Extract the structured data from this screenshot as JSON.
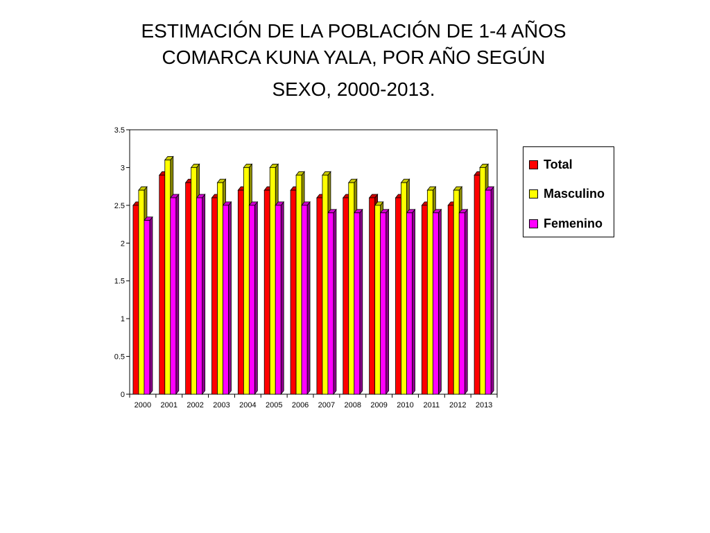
{
  "title": {
    "line1": "ESTIMACIÓN DE LA POBLACIÓN DE 1-4  AÑOS",
    "line2": "COMARCA KUNA YALA, POR AÑO SEGÚN",
    "line3": "SEXO, 2000-2013."
  },
  "chart_data": {
    "type": "bar",
    "title": "",
    "xlabel": "",
    "ylabel": "",
    "ylim": [
      0,
      3.5
    ],
    "yticks": [
      "0",
      "0.5",
      "1",
      "1.5",
      "2",
      "2.5",
      "3",
      "3.5"
    ],
    "categories": [
      "2000",
      "2001",
      "2002",
      "2003",
      "2004",
      "2005",
      "2006",
      "2007",
      "2008",
      "2009",
      "2010",
      "2011",
      "2012",
      "2013"
    ],
    "series": [
      {
        "name": "Total",
        "color": "#ff0000",
        "values": [
          2.5,
          2.9,
          2.8,
          2.6,
          2.7,
          2.7,
          2.7,
          2.6,
          2.6,
          2.6,
          2.6,
          2.5,
          2.5,
          2.9
        ]
      },
      {
        "name": "Masculino",
        "color": "#ffff00",
        "values": [
          2.7,
          3.1,
          3.0,
          2.8,
          3.0,
          3.0,
          2.9,
          2.9,
          2.8,
          2.5,
          2.8,
          2.7,
          2.7,
          3.0
        ]
      },
      {
        "name": "Femenino",
        "color": "#ff00ff",
        "values": [
          2.3,
          2.6,
          2.6,
          2.5,
          2.5,
          2.5,
          2.5,
          2.4,
          2.4,
          2.4,
          2.4,
          2.4,
          2.4,
          2.7
        ]
      }
    ],
    "grid": false,
    "legend_position": "right",
    "style": "3d-bar"
  }
}
